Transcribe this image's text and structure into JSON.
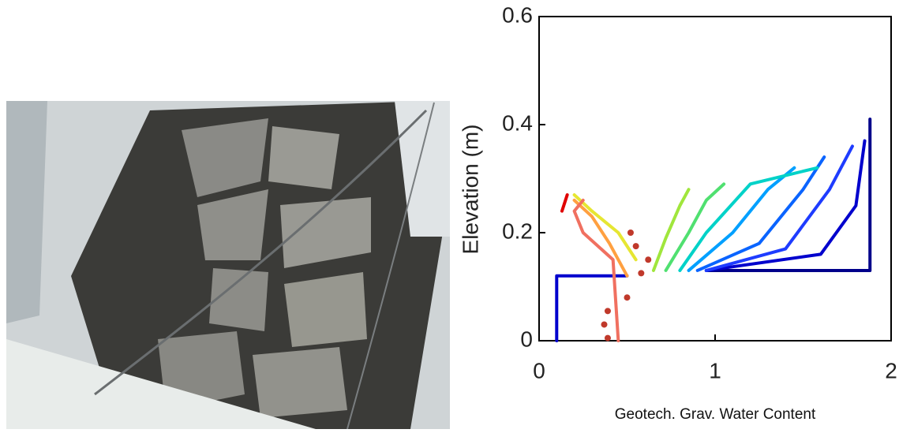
{
  "chart_data": {
    "type": "line",
    "ylabel": "Elevation (m)",
    "xlabel": "Geotech. Grav. Water Content",
    "xlim": [
      0,
      2
    ],
    "xticks": [
      0,
      1,
      2
    ],
    "ylim": [
      0,
      0.6
    ],
    "yticks": [
      0,
      0.2,
      0.4,
      0.6
    ],
    "series": [
      {
        "color": "#0000cd",
        "x": [
          0.1,
          0.1,
          0.5
        ],
        "values": [
          0.0,
          0.12,
          0.12
        ]
      },
      {
        "color": "#00008b",
        "x": [
          0.95,
          1.88,
          1.88
        ],
        "values": [
          0.13,
          0.13,
          0.41
        ]
      },
      {
        "color": "#0000cd",
        "x": [
          0.95,
          1.6,
          1.8,
          1.85
        ],
        "values": [
          0.13,
          0.16,
          0.25,
          0.37
        ]
      },
      {
        "color": "#1e3cff",
        "x": [
          0.95,
          1.4,
          1.65,
          1.78
        ],
        "values": [
          0.13,
          0.17,
          0.28,
          0.36
        ]
      },
      {
        "color": "#0a64ff",
        "x": [
          0.9,
          1.25,
          1.5,
          1.62
        ],
        "values": [
          0.13,
          0.18,
          0.28,
          0.34
        ]
      },
      {
        "color": "#00a0ff",
        "x": [
          0.85,
          1.1,
          1.3,
          1.45
        ],
        "values": [
          0.13,
          0.2,
          0.28,
          0.32
        ]
      },
      {
        "color": "#00d2c8",
        "x": [
          0.8,
          0.95,
          1.2,
          1.58
        ],
        "values": [
          0.13,
          0.2,
          0.29,
          0.32
        ]
      },
      {
        "color": "#50e070",
        "x": [
          0.72,
          0.85,
          0.95,
          1.05
        ],
        "values": [
          0.13,
          0.2,
          0.26,
          0.29
        ]
      },
      {
        "color": "#a0e63c",
        "x": [
          0.65,
          0.72,
          0.8,
          0.85
        ],
        "values": [
          0.13,
          0.19,
          0.25,
          0.28
        ]
      },
      {
        "color": "#e6e632",
        "x": [
          0.55,
          0.45,
          0.3,
          0.2
        ],
        "values": [
          0.15,
          0.2,
          0.24,
          0.27
        ]
      },
      {
        "color": "#ffa040",
        "x": [
          0.5,
          0.4,
          0.3,
          0.2
        ],
        "values": [
          0.12,
          0.18,
          0.23,
          0.26
        ]
      },
      {
        "color": "#f07060",
        "x": [
          0.45,
          0.42,
          0.25,
          0.2,
          0.25
        ],
        "values": [
          0.0,
          0.15,
          0.2,
          0.24,
          0.26
        ]
      },
      {
        "color": "#e00000",
        "x": [
          0.13,
          0.16
        ],
        "values": [
          0.24,
          0.27
        ]
      }
    ],
    "points": {
      "color": "#c0392b",
      "x": [
        0.39,
        0.37,
        0.39,
        0.5,
        0.58,
        0.62,
        0.52,
        0.55
      ],
      "values": [
        0.005,
        0.03,
        0.055,
        0.08,
        0.125,
        0.15,
        0.2,
        0.175
      ]
    }
  }
}
